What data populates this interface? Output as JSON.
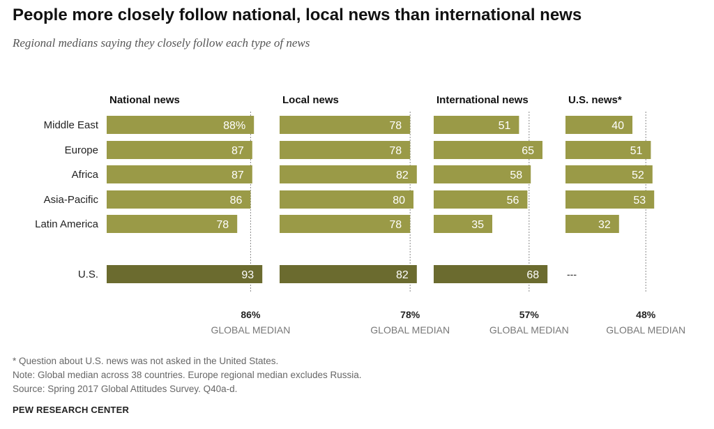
{
  "title": "People more closely follow national, local news than international news",
  "subtitle": "Regional medians saying they closely  follow each type of news",
  "chart_data": {
    "type": "bar",
    "orientation": "horizontal",
    "categories": [
      "Middle East",
      "Europe",
      "Africa",
      "Asia-Pacific",
      "Latin America",
      "U.S."
    ],
    "panels": [
      {
        "name": "National news",
        "values": [
          88,
          87,
          87,
          86,
          78,
          93
        ],
        "labels": [
          "88%",
          "87",
          "87",
          "86",
          "78",
          "93"
        ],
        "median": 86,
        "median_label": "86%"
      },
      {
        "name": "Local news",
        "values": [
          78,
          78,
          82,
          80,
          78,
          82
        ],
        "labels": [
          "78",
          "78",
          "82",
          "80",
          "78",
          "82"
        ],
        "median": 78,
        "median_label": "78%"
      },
      {
        "name": "International news",
        "values": [
          51,
          65,
          58,
          56,
          35,
          68
        ],
        "labels": [
          "51",
          "65",
          "58",
          "56",
          "35",
          "68"
        ],
        "median": 57,
        "median_label": "57%"
      },
      {
        "name": "U.S. news*",
        "values": [
          40,
          51,
          52,
          53,
          32,
          null
        ],
        "labels": [
          "40",
          "51",
          "52",
          "53",
          "32",
          "---"
        ],
        "median": 48,
        "median_label": "48%"
      }
    ],
    "median_caption": "GLOBAL MEDIAN",
    "colors": {
      "region_bar": "#9a9a47",
      "us_bar": "#6b6b2f",
      "label": "#ffffff",
      "median_line": "#888888"
    }
  },
  "notes": [
    "* Question about U.S. news was not asked in the United States.",
    "Note: Global median across 38 countries. Europe regional median excludes Russia.",
    "Source: Spring 2017 Global Attitudes Survey. Q40a-d."
  ],
  "footer": "PEW RESEARCH CENTER"
}
